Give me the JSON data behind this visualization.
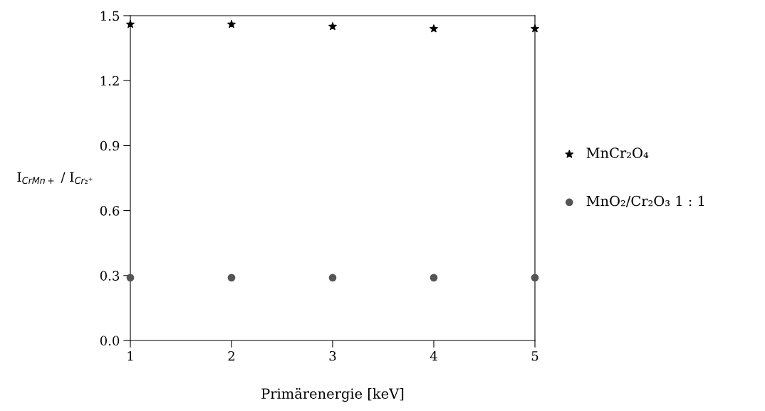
{
  "chart_data": {
    "type": "scatter",
    "xlabel": "Primärenergie [keV]",
    "ylabel": "I$_{CrMn+}$ / I$_{Cr₂⁺}$",
    "x": [
      1,
      2,
      3,
      4,
      5
    ],
    "series": [
      {
        "name": "MnCr₂O₄",
        "color": "#000000",
        "marker": "star",
        "values": [
          1.46,
          1.46,
          1.45,
          1.44,
          1.44
        ]
      },
      {
        "name": "MnO₂/Cr₂O₃ 1 : 1",
        "color": "#555555",
        "marker": "circle",
        "values": [
          0.29,
          0.29,
          0.29,
          0.29,
          0.29
        ]
      }
    ],
    "xlim": [
      1,
      5
    ],
    "xticks": [
      1,
      2,
      3,
      4,
      5
    ],
    "ylim": [
      0,
      1.5
    ],
    "yticks": [
      {
        "value": 0,
        "label": "0.0"
      },
      {
        "value": 0.3,
        "label": "0.3"
      },
      {
        "value": 0.6,
        "label": "0.6"
      },
      {
        "value": 0.9,
        "label": "0.9"
      },
      {
        "value": 1.2,
        "label": "1.2"
      },
      {
        "value": 1.5,
        "label": "1.5"
      }
    ],
    "grid": false,
    "legend": "right"
  }
}
